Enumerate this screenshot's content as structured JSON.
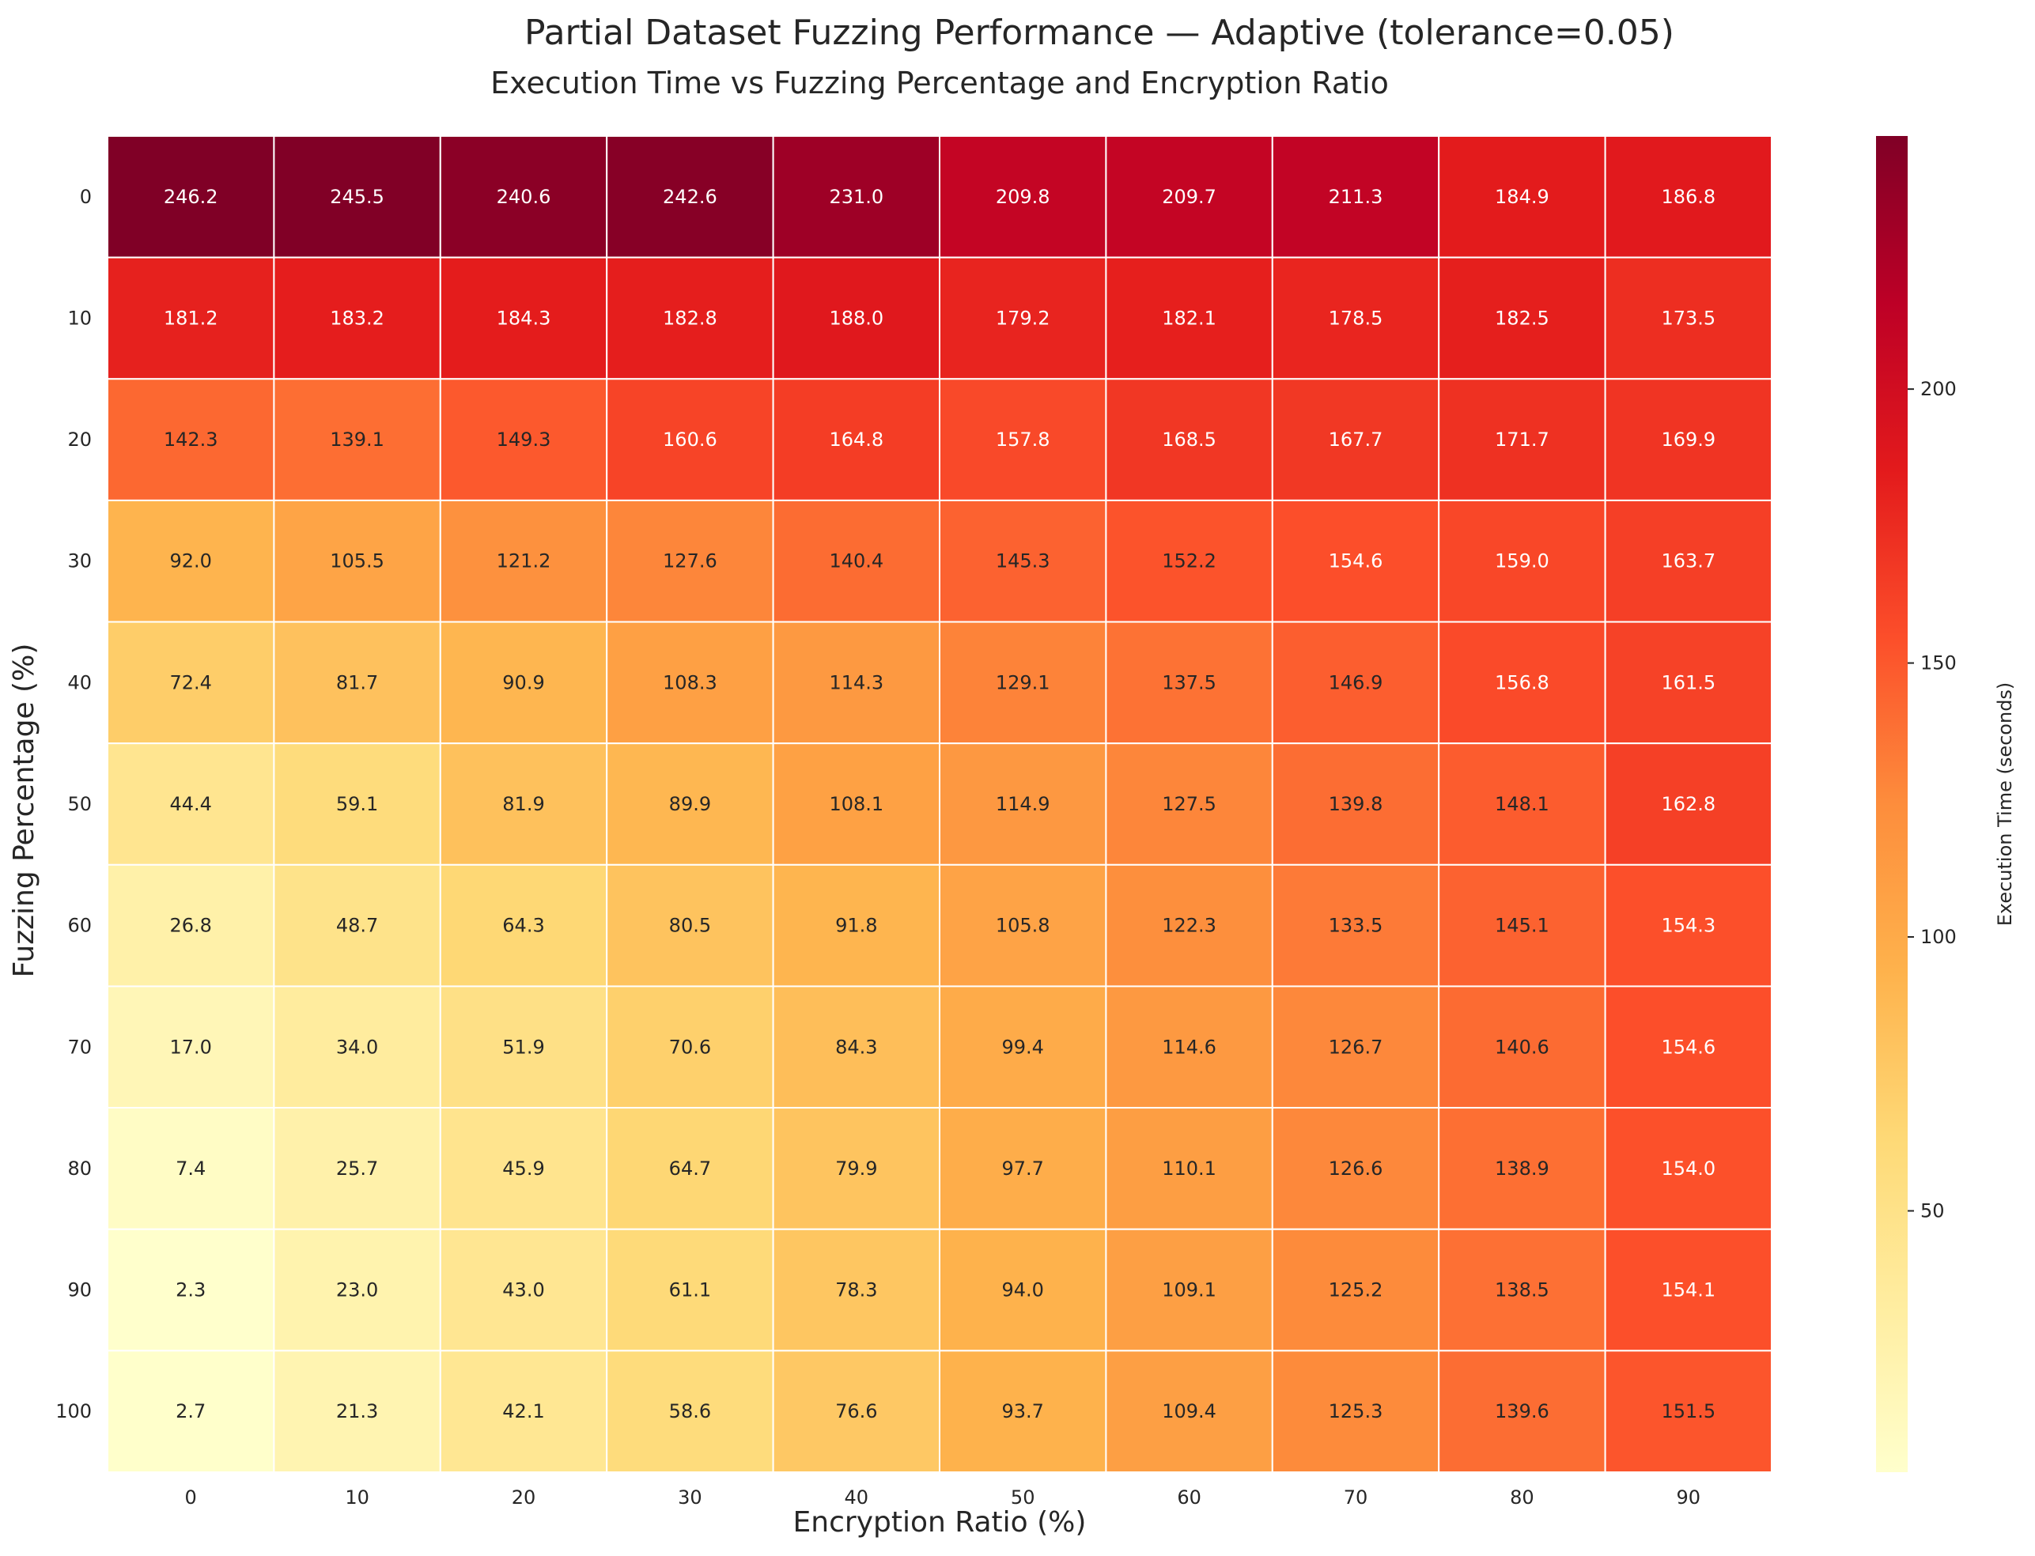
{
  "suptitle": "Partial Dataset Fuzzing Performance — Adaptive (tolerance=0.05)",
  "chart_data": {
    "type": "heatmap",
    "title": "Execution Time vs Fuzzing Percentage and Encryption Ratio",
    "xlabel": "Encryption Ratio (%)",
    "ylabel": "Fuzzing Percentage (%)",
    "colorbar_label": "Execution Time (seconds)",
    "colormap": "YlOrRd",
    "color_range": [
      2.3,
      246.2
    ],
    "colorbar_ticks": [
      50,
      100,
      150,
      200
    ],
    "x_categories": [
      "0",
      "10",
      "20",
      "30",
      "40",
      "50",
      "60",
      "70",
      "80",
      "90"
    ],
    "y_categories": [
      "0",
      "10",
      "20",
      "30",
      "40",
      "50",
      "60",
      "70",
      "80",
      "90",
      "100"
    ],
    "values": [
      [
        246.2,
        245.5,
        240.6,
        242.6,
        231.0,
        209.8,
        209.7,
        211.3,
        184.9,
        186.8
      ],
      [
        181.2,
        183.2,
        184.3,
        182.8,
        188.0,
        179.2,
        182.1,
        178.5,
        182.5,
        173.5
      ],
      [
        142.3,
        139.1,
        149.3,
        160.6,
        164.8,
        157.8,
        168.5,
        167.7,
        171.7,
        169.9
      ],
      [
        92.0,
        105.5,
        121.2,
        127.6,
        140.4,
        145.3,
        152.2,
        154.6,
        159.0,
        163.7
      ],
      [
        72.4,
        81.7,
        90.9,
        108.3,
        114.3,
        129.1,
        137.5,
        146.9,
        156.8,
        161.5
      ],
      [
        44.4,
        59.1,
        81.9,
        89.9,
        108.1,
        114.9,
        127.5,
        139.8,
        148.1,
        162.8
      ],
      [
        26.8,
        48.7,
        64.3,
        80.5,
        91.8,
        105.8,
        122.3,
        133.5,
        145.1,
        154.3
      ],
      [
        17.0,
        34.0,
        51.9,
        70.6,
        84.3,
        99.4,
        114.6,
        126.7,
        140.6,
        154.6
      ],
      [
        7.4,
        25.7,
        45.9,
        64.7,
        79.9,
        97.7,
        110.1,
        126.6,
        138.9,
        154.0
      ],
      [
        2.3,
        23.0,
        43.0,
        61.1,
        78.3,
        94.0,
        109.1,
        125.2,
        138.5,
        154.1
      ],
      [
        2.7,
        21.3,
        42.1,
        58.6,
        76.6,
        93.7,
        109.4,
        125.3,
        139.6,
        151.5
      ]
    ],
    "cell_separators": "white",
    "grid": false
  }
}
